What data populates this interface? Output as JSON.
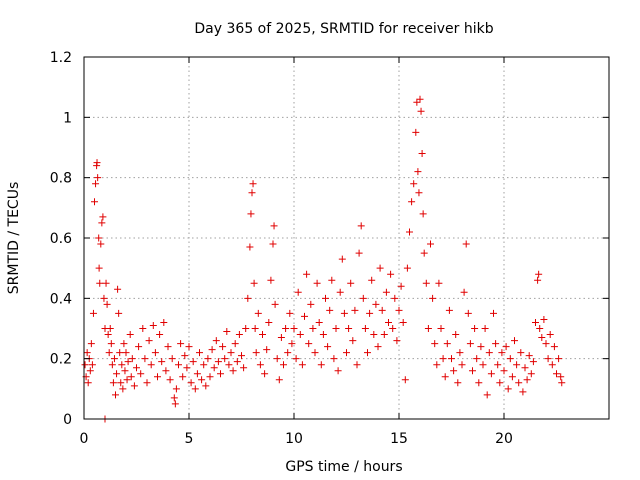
{
  "chart_data": {
    "type": "scatter",
    "title": "Day 365 of 2025, SRMTID for receiver hikb",
    "xlabel": "GPS time / hours",
    "ylabel": "SRMTID / TECUs",
    "xlim": [
      0,
      25
    ],
    "ylim": [
      0,
      1.2
    ],
    "xticks": [
      0,
      5,
      10,
      15,
      20
    ],
    "xtick_labels": [
      "0",
      "5",
      "10",
      "15",
      "20"
    ],
    "yticks": [
      0,
      0.2,
      0.4,
      0.6,
      0.8,
      1.0,
      1.2
    ],
    "ytick_labels": [
      "0",
      "0.2",
      "0.4",
      "0.6",
      "0.8",
      "1",
      "1.2"
    ],
    "grid": true,
    "marker": "+",
    "marker_color": "#e00000",
    "series": [
      {
        "name": "SRMTID",
        "points": [
          [
            0.05,
            0.18
          ],
          [
            0.1,
            0.14
          ],
          [
            0.15,
            0.22
          ],
          [
            0.2,
            0.12
          ],
          [
            0.25,
            0.2
          ],
          [
            0.3,
            0.16
          ],
          [
            0.35,
            0.25
          ],
          [
            0.4,
            0.18
          ],
          [
            0.45,
            0.35
          ],
          [
            0.5,
            0.72
          ],
          [
            0.55,
            0.78
          ],
          [
            0.6,
            0.84
          ],
          [
            0.62,
            0.85
          ],
          [
            0.65,
            0.8
          ],
          [
            0.7,
            0.6
          ],
          [
            0.72,
            0.5
          ],
          [
            0.75,
            0.45
          ],
          [
            0.8,
            0.58
          ],
          [
            0.85,
            0.65
          ],
          [
            0.9,
            0.67
          ],
          [
            0.95,
            0.4
          ],
          [
            1.0,
            0.3
          ],
          [
            1.0,
            0.0
          ],
          [
            1.05,
            0.45
          ],
          [
            1.1,
            0.38
          ],
          [
            1.15,
            0.28
          ],
          [
            1.2,
            0.22
          ],
          [
            1.25,
            0.3
          ],
          [
            1.3,
            0.25
          ],
          [
            1.35,
            0.18
          ],
          [
            1.4,
            0.12
          ],
          [
            1.45,
            0.2
          ],
          [
            1.5,
            0.08
          ],
          [
            1.55,
            0.15
          ],
          [
            1.6,
            0.43
          ],
          [
            1.65,
            0.35
          ],
          [
            1.7,
            0.22
          ],
          [
            1.75,
            0.12
          ],
          [
            1.8,
            0.18
          ],
          [
            1.85,
            0.1
          ],
          [
            1.9,
            0.25
          ],
          [
            1.95,
            0.16
          ],
          [
            2.0,
            0.22
          ],
          [
            2.05,
            0.13
          ],
          [
            2.1,
            0.19
          ],
          [
            2.2,
            0.28
          ],
          [
            2.25,
            0.14
          ],
          [
            2.3,
            0.2
          ],
          [
            2.4,
            0.11
          ],
          [
            2.5,
            0.17
          ],
          [
            2.6,
            0.24
          ],
          [
            2.7,
            0.15
          ],
          [
            2.8,
            0.3
          ],
          [
            2.9,
            0.2
          ],
          [
            3.0,
            0.12
          ],
          [
            3.1,
            0.26
          ],
          [
            3.2,
            0.18
          ],
          [
            3.3,
            0.31
          ],
          [
            3.4,
            0.22
          ],
          [
            3.5,
            0.14
          ],
          [
            3.6,
            0.28
          ],
          [
            3.7,
            0.19
          ],
          [
            3.8,
            0.32
          ],
          [
            3.9,
            0.16
          ],
          [
            4.0,
            0.24
          ],
          [
            4.1,
            0.13
          ],
          [
            4.2,
            0.2
          ],
          [
            4.3,
            0.07
          ],
          [
            4.35,
            0.05
          ],
          [
            4.4,
            0.1
          ],
          [
            4.5,
            0.18
          ],
          [
            4.6,
            0.25
          ],
          [
            4.7,
            0.14
          ],
          [
            4.8,
            0.21
          ],
          [
            4.9,
            0.17
          ],
          [
            5.0,
            0.24
          ],
          [
            5.1,
            0.12
          ],
          [
            5.2,
            0.19
          ],
          [
            5.3,
            0.1
          ],
          [
            5.4,
            0.15
          ],
          [
            5.5,
            0.22
          ],
          [
            5.6,
            0.13
          ],
          [
            5.7,
            0.18
          ],
          [
            5.8,
            0.11
          ],
          [
            5.9,
            0.2
          ],
          [
            6.0,
            0.14
          ],
          [
            6.1,
            0.23
          ],
          [
            6.2,
            0.17
          ],
          [
            6.3,
            0.26
          ],
          [
            6.4,
            0.19
          ],
          [
            6.5,
            0.15
          ],
          [
            6.6,
            0.24
          ],
          [
            6.7,
            0.2
          ],
          [
            6.8,
            0.29
          ],
          [
            6.9,
            0.18
          ],
          [
            7.0,
            0.22
          ],
          [
            7.1,
            0.16
          ],
          [
            7.2,
            0.25
          ],
          [
            7.3,
            0.19
          ],
          [
            7.4,
            0.28
          ],
          [
            7.5,
            0.21
          ],
          [
            7.6,
            0.17
          ],
          [
            7.7,
            0.3
          ],
          [
            7.8,
            0.4
          ],
          [
            7.9,
            0.57
          ],
          [
            7.95,
            0.68
          ],
          [
            8.0,
            0.75
          ],
          [
            8.05,
            0.78
          ],
          [
            8.1,
            0.45
          ],
          [
            8.15,
            0.3
          ],
          [
            8.2,
            0.22
          ],
          [
            8.3,
            0.35
          ],
          [
            8.4,
            0.18
          ],
          [
            8.5,
            0.28
          ],
          [
            8.6,
            0.15
          ],
          [
            8.7,
            0.23
          ],
          [
            8.8,
            0.32
          ],
          [
            8.9,
            0.46
          ],
          [
            9.0,
            0.58
          ],
          [
            9.05,
            0.64
          ],
          [
            9.1,
            0.38
          ],
          [
            9.2,
            0.2
          ],
          [
            9.3,
            0.13
          ],
          [
            9.4,
            0.27
          ],
          [
            9.5,
            0.18
          ],
          [
            9.6,
            0.3
          ],
          [
            9.7,
            0.22
          ],
          [
            9.8,
            0.35
          ],
          [
            9.9,
            0.25
          ],
          [
            10.0,
            0.3
          ],
          [
            10.1,
            0.2
          ],
          [
            10.2,
            0.42
          ],
          [
            10.3,
            0.28
          ],
          [
            10.4,
            0.18
          ],
          [
            10.5,
            0.34
          ],
          [
            10.6,
            0.48
          ],
          [
            10.7,
            0.25
          ],
          [
            10.8,
            0.38
          ],
          [
            10.9,
            0.3
          ],
          [
            11.0,
            0.22
          ],
          [
            11.1,
            0.45
          ],
          [
            11.2,
            0.32
          ],
          [
            11.3,
            0.18
          ],
          [
            11.4,
            0.28
          ],
          [
            11.5,
            0.4
          ],
          [
            11.6,
            0.24
          ],
          [
            11.7,
            0.36
          ],
          [
            11.8,
            0.46
          ],
          [
            11.9,
            0.2
          ],
          [
            12.0,
            0.3
          ],
          [
            12.1,
            0.16
          ],
          [
            12.2,
            0.42
          ],
          [
            12.3,
            0.53
          ],
          [
            12.4,
            0.35
          ],
          [
            12.5,
            0.22
          ],
          [
            12.6,
            0.3
          ],
          [
            12.7,
            0.45
          ],
          [
            12.8,
            0.26
          ],
          [
            12.9,
            0.36
          ],
          [
            13.0,
            0.18
          ],
          [
            13.1,
            0.55
          ],
          [
            13.2,
            0.64
          ],
          [
            13.3,
            0.4
          ],
          [
            13.4,
            0.3
          ],
          [
            13.5,
            0.22
          ],
          [
            13.6,
            0.35
          ],
          [
            13.7,
            0.46
          ],
          [
            13.8,
            0.28
          ],
          [
            13.9,
            0.38
          ],
          [
            14.0,
            0.24
          ],
          [
            14.1,
            0.5
          ],
          [
            14.2,
            0.36
          ],
          [
            14.3,
            0.28
          ],
          [
            14.4,
            0.42
          ],
          [
            14.5,
            0.32
          ],
          [
            14.6,
            0.48
          ],
          [
            14.7,
            0.3
          ],
          [
            14.8,
            0.4
          ],
          [
            14.9,
            0.26
          ],
          [
            15.0,
            0.36
          ],
          [
            15.1,
            0.44
          ],
          [
            15.2,
            0.32
          ],
          [
            15.3,
            0.13
          ],
          [
            15.4,
            0.5
          ],
          [
            15.5,
            0.62
          ],
          [
            15.6,
            0.72
          ],
          [
            15.7,
            0.78
          ],
          [
            15.8,
            0.95
          ],
          [
            15.85,
            1.05
          ],
          [
            15.9,
            0.82
          ],
          [
            15.95,
            0.75
          ],
          [
            16.0,
            1.06
          ],
          [
            16.05,
            1.02
          ],
          [
            16.1,
            0.88
          ],
          [
            16.15,
            0.68
          ],
          [
            16.2,
            0.55
          ],
          [
            16.3,
            0.45
          ],
          [
            16.4,
            0.3
          ],
          [
            16.5,
            0.58
          ],
          [
            16.6,
            0.4
          ],
          [
            16.7,
            0.25
          ],
          [
            16.8,
            0.18
          ],
          [
            16.9,
            0.45
          ],
          [
            17.0,
            0.3
          ],
          [
            17.1,
            0.2
          ],
          [
            17.2,
            0.14
          ],
          [
            17.3,
            0.25
          ],
          [
            17.4,
            0.36
          ],
          [
            17.5,
            0.2
          ],
          [
            17.6,
            0.16
          ],
          [
            17.7,
            0.28
          ],
          [
            17.8,
            0.12
          ],
          [
            17.9,
            0.22
          ],
          [
            18.0,
            0.18
          ],
          [
            18.1,
            0.42
          ],
          [
            18.2,
            0.58
          ],
          [
            18.3,
            0.35
          ],
          [
            18.4,
            0.25
          ],
          [
            18.5,
            0.16
          ],
          [
            18.6,
            0.3
          ],
          [
            18.7,
            0.2
          ],
          [
            18.8,
            0.12
          ],
          [
            18.9,
            0.24
          ],
          [
            19.0,
            0.18
          ],
          [
            19.1,
            0.3
          ],
          [
            19.2,
            0.08
          ],
          [
            19.3,
            0.22
          ],
          [
            19.4,
            0.15
          ],
          [
            19.5,
            0.35
          ],
          [
            19.6,
            0.25
          ],
          [
            19.7,
            0.18
          ],
          [
            19.8,
            0.12
          ],
          [
            19.9,
            0.22
          ],
          [
            20.0,
            0.16
          ],
          [
            20.1,
            0.24
          ],
          [
            20.2,
            0.1
          ],
          [
            20.3,
            0.2
          ],
          [
            20.4,
            0.14
          ],
          [
            20.5,
            0.26
          ],
          [
            20.6,
            0.18
          ],
          [
            20.7,
            0.12
          ],
          [
            20.8,
            0.22
          ],
          [
            20.9,
            0.09
          ],
          [
            21.0,
            0.17
          ],
          [
            21.1,
            0.13
          ],
          [
            21.2,
            0.21
          ],
          [
            21.3,
            0.15
          ],
          [
            21.4,
            0.19
          ],
          [
            21.5,
            0.32
          ],
          [
            21.6,
            0.46
          ],
          [
            21.65,
            0.48
          ],
          [
            21.7,
            0.3
          ],
          [
            21.8,
            0.27
          ],
          [
            21.9,
            0.33
          ],
          [
            22.0,
            0.25
          ],
          [
            22.1,
            0.2
          ],
          [
            22.2,
            0.28
          ],
          [
            22.3,
            0.18
          ],
          [
            22.4,
            0.24
          ],
          [
            22.5,
            0.15
          ],
          [
            22.6,
            0.2
          ],
          [
            22.7,
            0.14
          ],
          [
            22.75,
            0.12
          ]
        ]
      }
    ]
  }
}
